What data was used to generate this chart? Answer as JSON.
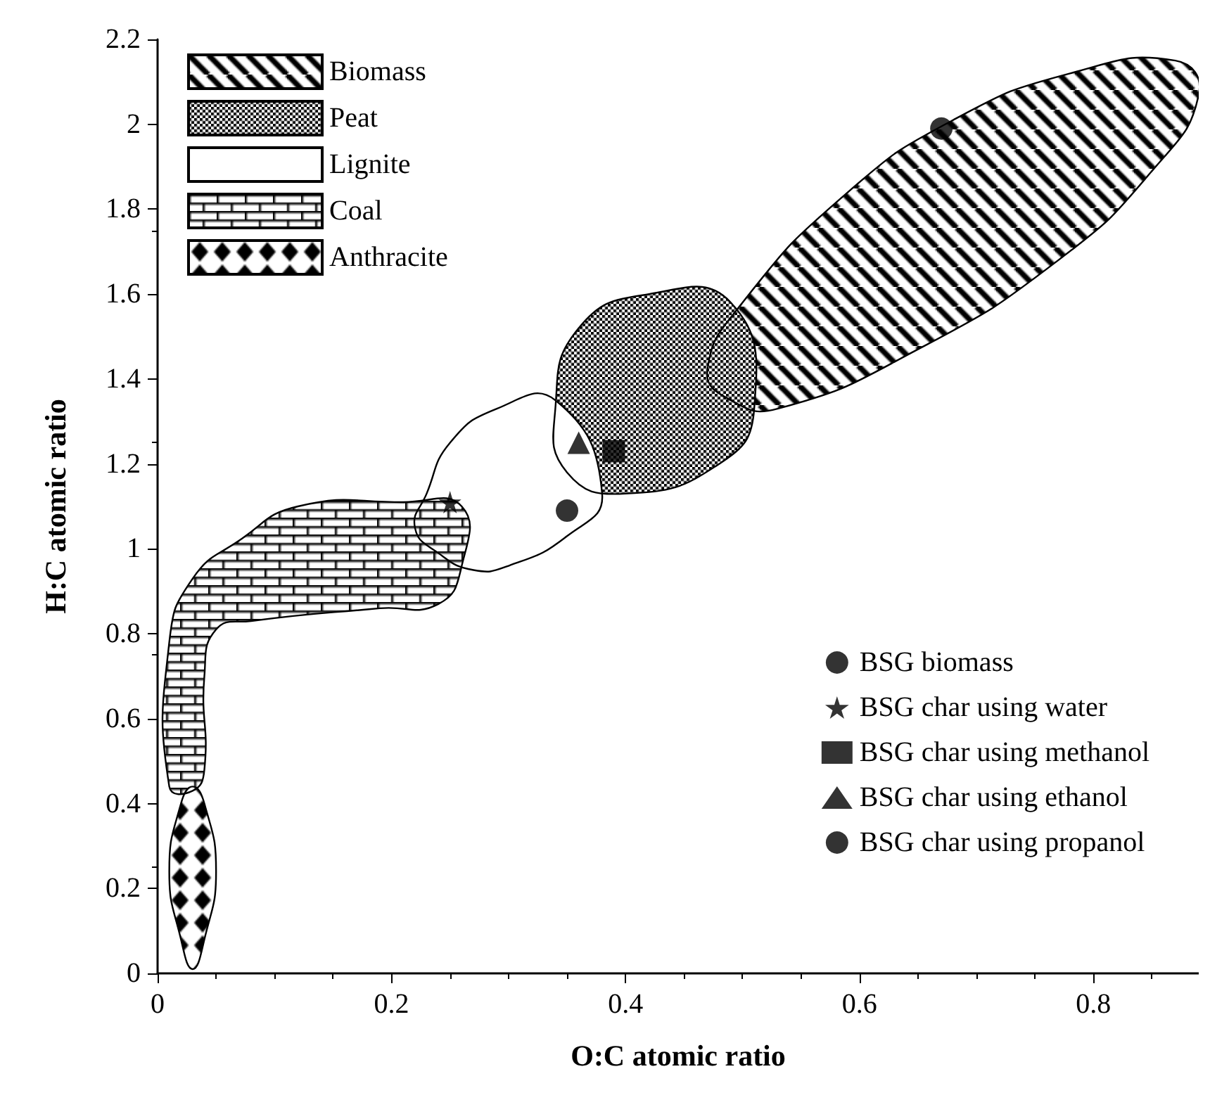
{
  "chart_data": {
    "type": "scatter",
    "xlabel": "O:C atomic ratio",
    "ylabel": "H:C atomic ratio",
    "xlim": [
      0,
      0.89
    ],
    "xticks": [
      0,
      0.2,
      0.4,
      0.6,
      0.8
    ],
    "ylim": [
      0,
      2.2
    ],
    "yticks": [
      0,
      0.2,
      0.4,
      0.6,
      0.8,
      1,
      1.2,
      1.4,
      1.6,
      1.8,
      2,
      2.2
    ],
    "grid": false,
    "legend": [
      "top left",
      "bottom right"
    ],
    "series": [
      {
        "name": "Biomass",
        "type": "area",
        "color": "#000000",
        "x": [
          0.47,
          0.5,
          0.59,
          0.68,
          0.78,
          0.87,
          0.89,
          0.85,
          0.77,
          0.65,
          0.53,
          0.49
        ],
        "values": [
          1.42,
          1.58,
          1.84,
          2.01,
          2.12,
          2.15,
          2.07,
          1.89,
          1.68,
          1.47,
          1.33,
          1.35
        ]
      },
      {
        "name": "Peat",
        "type": "area",
        "color": "#000000",
        "x": [
          0.34,
          0.36,
          0.42,
          0.49,
          0.51,
          0.48,
          0.4,
          0.35
        ],
        "values": [
          1.33,
          1.52,
          1.6,
          1.58,
          1.33,
          1.2,
          1.13,
          1.18
        ]
      },
      {
        "name": "Lignite",
        "type": "area",
        "color": "#000000",
        "x": [
          0.22,
          0.23,
          0.25,
          0.29,
          0.34,
          0.38,
          0.35,
          0.3,
          0.27,
          0.24
        ],
        "values": [
          1.05,
          1.13,
          1.25,
          1.33,
          1.35,
          1.13,
          1.03,
          0.96,
          0.95,
          0.99
        ]
      },
      {
        "name": "Coal",
        "type": "area",
        "color": "#000000",
        "x": [
          0.01,
          0.01,
          0.03,
          0.07,
          0.12,
          0.21,
          0.26,
          0.26,
          0.24,
          0.19,
          0.08,
          0.05,
          0.04,
          0.04,
          0.03
        ],
        "values": [
          0.44,
          0.78,
          0.93,
          1.02,
          1.1,
          1.11,
          1.1,
          0.96,
          0.87,
          0.86,
          0.83,
          0.81,
          0.7,
          0.48,
          0.43
        ]
      },
      {
        "name": "Anthracite",
        "type": "area",
        "color": "#000000",
        "x": [
          0.03,
          0.04,
          0.05,
          0.04,
          0.03,
          0.02,
          0.01,
          0.02
        ],
        "values": [
          0.44,
          0.4,
          0.24,
          0.08,
          0.01,
          0.08,
          0.24,
          0.4
        ]
      },
      {
        "name": "BSG biomass",
        "marker": "circle",
        "color": "#000000",
        "x": [
          0.67
        ],
        "values": [
          1.99
        ]
      },
      {
        "name": "BSG char using water",
        "marker": "star",
        "color": "#000000",
        "x": [
          0.25
        ],
        "values": [
          1.11
        ]
      },
      {
        "name": "BSG char using methanol",
        "marker": "square",
        "color": "#000000",
        "x": [
          0.39
        ],
        "values": [
          1.23
        ]
      },
      {
        "name": "BSG char using ethanol",
        "marker": "triangle",
        "color": "#000000",
        "x": [
          0.36
        ],
        "values": [
          1.25
        ]
      },
      {
        "name": "BSG char using propanol",
        "marker": "circle",
        "color": "#000000",
        "x": [
          0.35
        ],
        "values": [
          1.09
        ]
      }
    ]
  }
}
